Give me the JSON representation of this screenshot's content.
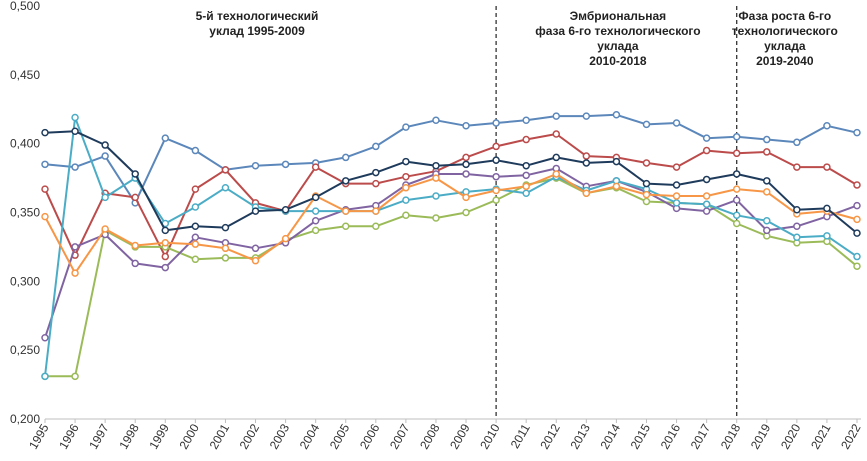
{
  "chart_data": {
    "type": "line",
    "title": "",
    "xlabel": "",
    "ylabel": "",
    "x": [
      "1995",
      "1996",
      "1997",
      "1998",
      "1999",
      "2000",
      "2001",
      "2002",
      "2003",
      "2004",
      "2005",
      "2006",
      "2007",
      "2008",
      "2009",
      "2010",
      "2011",
      "2012",
      "2013",
      "2014",
      "2015",
      "2016",
      "2017",
      "2018",
      "2019",
      "2020",
      "2021",
      "2022"
    ],
    "y_ticks": [
      "0,200",
      "0,250",
      "0,300",
      "0,350",
      "0,400",
      "0,450",
      "0,500"
    ],
    "ylim": [
      0.2,
      0.5
    ],
    "grid": false,
    "legend": "none",
    "phase_dividers": [
      "2010",
      "2018"
    ],
    "annotations": [
      {
        "lines": [
          "5-й технологический",
          "уклад 1995-2009"
        ]
      },
      {
        "lines": [
          "Эмбриональная",
          "фаза 6-го технологического",
          "уклада",
          "2010-2018"
        ]
      },
      {
        "lines": [
          "Фаза роста 6-го",
          "технологического",
          "уклада",
          "2019-2040"
        ]
      }
    ],
    "series": [
      {
        "color": "#5b87bb",
        "values": [
          0.385,
          0.383,
          0.391,
          0.357,
          0.404,
          0.395,
          0.381,
          0.384,
          0.385,
          0.386,
          0.39,
          0.398,
          0.412,
          0.417,
          0.413,
          0.415,
          0.417,
          0.42,
          0.42,
          0.421,
          0.414,
          0.415,
          0.404,
          0.405,
          0.403,
          0.401,
          0.413,
          0.408
        ]
      },
      {
        "color": "#bc4b4b",
        "values": [
          0.367,
          0.319,
          0.364,
          0.361,
          0.318,
          0.367,
          0.381,
          0.357,
          0.351,
          0.383,
          0.371,
          0.371,
          0.376,
          0.38,
          0.39,
          0.398,
          0.403,
          0.407,
          0.391,
          0.39,
          0.386,
          0.383,
          0.395,
          0.393,
          0.394,
          0.383,
          0.383,
          0.37
        ]
      },
      {
        "color": "#9bbb59",
        "values": [
          0.231,
          0.231,
          0.337,
          0.325,
          0.325,
          0.316,
          0.317,
          0.317,
          0.33,
          0.337,
          0.34,
          0.34,
          0.348,
          0.346,
          0.35,
          0.359,
          0.37,
          0.375,
          0.364,
          0.368,
          0.358,
          0.357,
          0.356,
          0.342,
          0.333,
          0.328,
          0.329,
          0.311
        ]
      },
      {
        "color": "#8064a2",
        "values": [
          0.259,
          0.325,
          0.334,
          0.313,
          0.31,
          0.332,
          0.328,
          0.324,
          0.328,
          0.344,
          0.352,
          0.355,
          0.37,
          0.378,
          0.378,
          0.376,
          0.377,
          0.382,
          0.369,
          0.373,
          0.365,
          0.353,
          0.351,
          0.359,
          0.337,
          0.34,
          0.347,
          0.355
        ]
      },
      {
        "color": "#4bacc6",
        "values": [
          0.231,
          0.419,
          0.361,
          0.375,
          0.342,
          0.354,
          0.368,
          0.354,
          0.351,
          0.351,
          0.351,
          0.351,
          0.359,
          0.362,
          0.365,
          0.367,
          0.364,
          0.376,
          0.366,
          0.373,
          0.367,
          0.357,
          0.356,
          0.348,
          0.344,
          0.332,
          0.333,
          0.318
        ]
      },
      {
        "color": "#f79646",
        "values": [
          0.347,
          0.306,
          0.338,
          0.326,
          0.328,
          0.327,
          0.324,
          0.315,
          0.331,
          0.362,
          0.351,
          0.351,
          0.368,
          0.375,
          0.361,
          0.366,
          0.369,
          0.378,
          0.364,
          0.369,
          0.363,
          0.362,
          0.362,
          0.367,
          0.365,
          0.349,
          0.351,
          0.345
        ]
      },
      {
        "color": "#1f3b5c",
        "values": [
          0.408,
          0.409,
          0.399,
          0.378,
          0.337,
          0.34,
          0.339,
          0.351,
          0.352,
          0.361,
          0.373,
          0.379,
          0.387,
          0.384,
          0.385,
          0.388,
          0.384,
          0.39,
          0.386,
          0.387,
          0.371,
          0.37,
          0.374,
          0.378,
          0.373,
          0.352,
          0.353,
          0.335
        ]
      }
    ]
  }
}
